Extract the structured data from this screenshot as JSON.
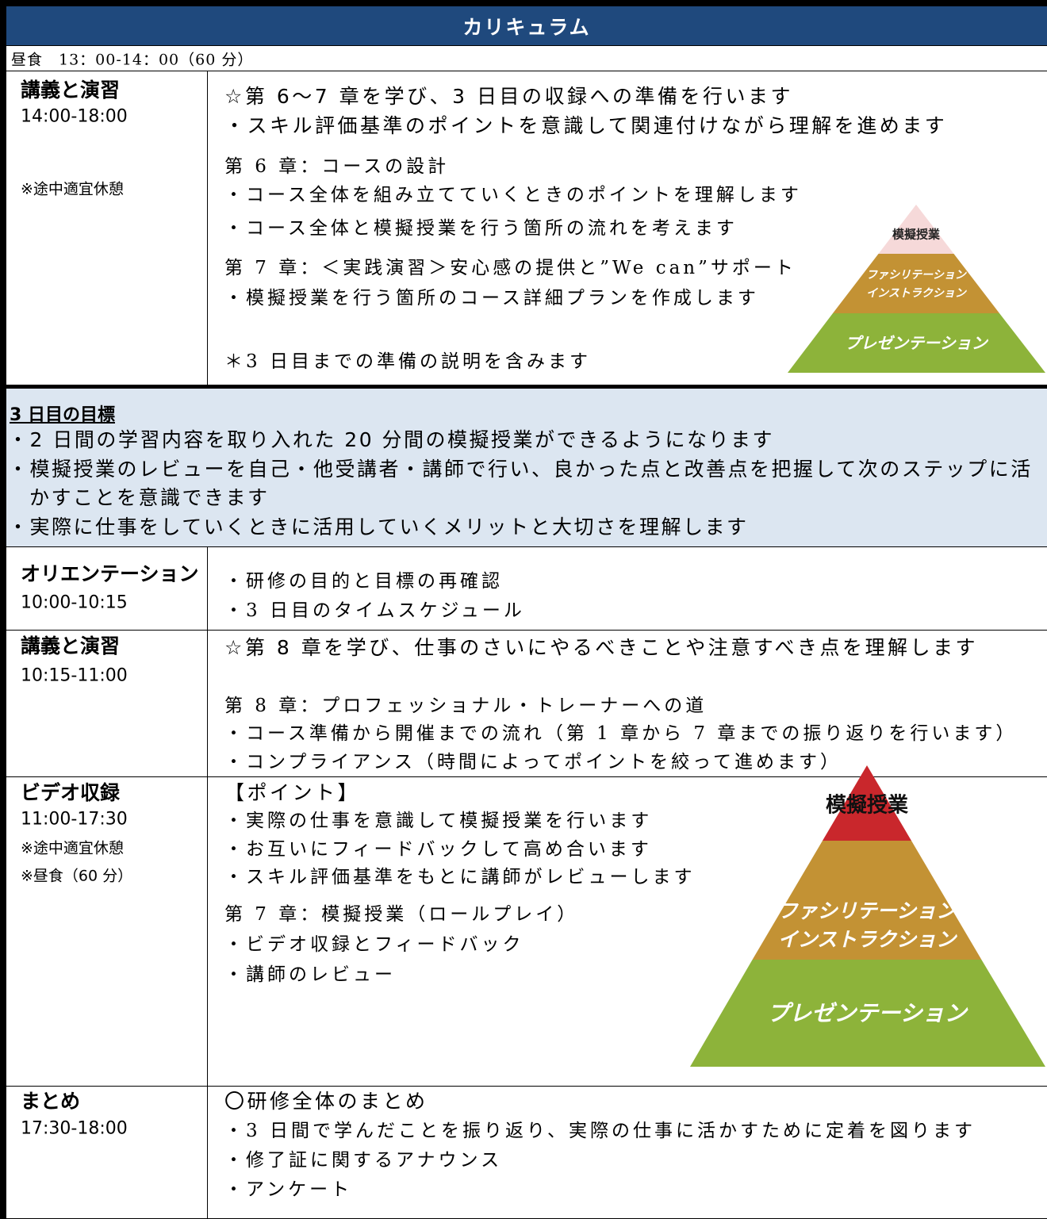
{
  "header": {
    "title": "カリキュラム"
  },
  "lunch": "昼食　13：00-14：00（60 分）",
  "rows": [
    {
      "title": "講義と演習",
      "time": "14:00-18:00",
      "notes": [
        "※途中適宜休憩"
      ],
      "lead": [
        "☆第 6〜7 章を学び、3 日目の収録への準備を行います",
        "・スキル評価基準のポイントを意識して関連付けながら理解を進めます"
      ],
      "body": [
        "第 6 章：コースの設計",
        "・コース全体を組み立てていくときのポイントを理解します",
        "・コース全体と模擬授業を行う箇所の流れを考えます",
        "第 7 章：＜実践演習＞安心感の提供と”We can”サポート",
        "・模擬授業を行う箇所のコース詳細プランを作成します",
        "＊3 日目までの準備の説明を含みます"
      ]
    },
    {
      "title": "オリエンテーション",
      "time": "10:00-10:15",
      "body": [
        "・研修の目的と目標の再確認",
        "・3 日目のタイムスケジュール"
      ]
    },
    {
      "title": "講義と演習",
      "time": "10:15-11:00",
      "lead": [
        "☆第 8 章を学び、仕事のさいにやるべきことや注意すべき点を理解します"
      ],
      "body": [
        "第 8 章：プロフェッショナル・トレーナーへの道",
        "・コース準備から開催までの流れ（第 1 章から 7 章までの振り返りを行います）",
        "・コンプライアンス（時間によってポイントを絞って進めます）"
      ]
    },
    {
      "title": "ビデオ収録",
      "time": "11:00-17:30",
      "notes": [
        "※途中適宜休憩",
        "※昼食（60 分）"
      ],
      "lead": [
        "【ポイント】"
      ],
      "body": [
        "・実際の仕事を意識して模擬授業を行います",
        "・お互いにフィードバックして高め合います",
        "・スキル評価基準をもとに講師がレビューします",
        "第 7 章：模擬授業（ロールプレイ）",
        "・ビデオ収録とフィードバック",
        "・講師のレビュー"
      ]
    },
    {
      "title": "まとめ",
      "time": "17:30-18:00",
      "lead": [
        "〇研修全体のまとめ"
      ],
      "body": [
        "・3 日間で学んだことを振り返り、実際の仕事に活かすために定着を図ります",
        "・修了証に関するアナウンス",
        "・アンケート"
      ]
    }
  ],
  "goals": {
    "title": "3 日目の目標",
    "items": [
      "・2 日間の学習内容を取り入れた 20 分間の模擬授業ができるようになります",
      "・模擬授業のレビューを自己・他受講者・講師で行い、良かった点と改善点を把握して次のステップに活かすことを意識できます",
      "・実際に仕事をしていくときに活用していくメリットと大切さを理解します"
    ]
  },
  "pyramids": [
    {
      "top": "模擬授業",
      "middle": [
        "ファシリテーション",
        "インストラクション"
      ],
      "bottom": "プレゼンテーション"
    },
    {
      "top": "模擬授業",
      "middle": [
        "ファシリテーション",
        "インストラクション"
      ],
      "bottom": "プレゼンテーション"
    }
  ]
}
